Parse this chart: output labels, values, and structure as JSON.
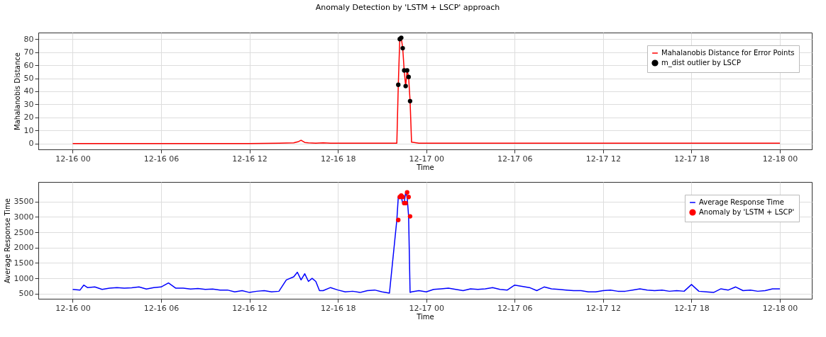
{
  "chart_data": [
    {
      "type": "line",
      "title": "Anomaly Detection by 'LSTM + LSCP' approach",
      "xlabel": "Time",
      "ylabel": "Mahalanobis Distance",
      "xlim": [
        "--12-15T21:40",
        "--12-18T02:10"
      ],
      "ylim": [
        -4.5,
        85
      ],
      "yticks": [
        0,
        10,
        20,
        30,
        40,
        50,
        60,
        70,
        80
      ],
      "xticks": [
        {
          "value": "--12-16T00:00",
          "label": "12-16 00"
        },
        {
          "value": "--12-16T06:00",
          "label": "12-16 06"
        },
        {
          "value": "--12-16T12:00",
          "label": "12-16 12"
        },
        {
          "value": "--12-16T18:00",
          "label": "12-16 18"
        },
        {
          "value": "--12-17T00:00",
          "label": "12-17 00"
        },
        {
          "value": "--12-17T06:00",
          "label": "12-17 06"
        },
        {
          "value": "--12-17T12:00",
          "label": "12-17 12"
        },
        {
          "value": "--12-17T18:00",
          "label": "12-17 18"
        },
        {
          "value": "--12-18T00:00",
          "label": "12-18 00"
        }
      ],
      "grid": true,
      "legend": "top right",
      "series": [
        {
          "name": "Mahalanobis Distance for Error Points",
          "color": "#ff0000",
          "marker": "none",
          "x": [
            "--12-16T00:00",
            "--12-16T04:00",
            "--12-16T08:00",
            "--12-16T12:00",
            "--12-16T14:00",
            "--12-16T15:00",
            "--12-16T15:20",
            "--12-16T15:30",
            "--12-16T15:45",
            "--12-16T16:00",
            "--12-16T16:30",
            "--12-16T17:00",
            "--12-16T17:30",
            "--12-16T18:00",
            "--12-16T20:00",
            "--12-16T22:00",
            "--12-16T22:06",
            "--12-16T22:12",
            "--12-16T22:18",
            "--12-16T22:24",
            "--12-16T22:30",
            "--12-16T22:36",
            "--12-16T22:42",
            "--12-16T22:48",
            "--12-16T22:54",
            "--12-16T23:00",
            "--12-16T23:30",
            "--12-17T02:00",
            "--12-17T06:00",
            "--12-17T08:00",
            "--12-17T12:00",
            "--12-17T18:00",
            "--12-18T00:00"
          ],
          "values": [
            0,
            0,
            0,
            0,
            0.2,
            0.5,
            1.5,
            2.5,
            0.8,
            0.5,
            0.3,
            0.5,
            0.3,
            0.2,
            0.2,
            0.2,
            45,
            80,
            81,
            73,
            56,
            44,
            56,
            51,
            32.5,
            1,
            0.3,
            0.2,
            0.2,
            0.3,
            0.2,
            0.2,
            0.2
          ]
        },
        {
          "name": "m_dist outlier by LSCP",
          "color": "#000000",
          "type": "scatter",
          "marker": "circle",
          "x": [
            "--12-16T22:06",
            "--12-16T22:12",
            "--12-16T22:18",
            "--12-16T22:24",
            "--12-16T22:30",
            "--12-16T22:36",
            "--12-16T22:42",
            "--12-16T22:48",
            "--12-16T22:54"
          ],
          "values": [
            45,
            80,
            81,
            73,
            56,
            44,
            56,
            51,
            32.5
          ]
        }
      ]
    },
    {
      "type": "line",
      "xlabel": "Time",
      "ylabel": "Average Response Time",
      "xlim": [
        "--12-15T21:40",
        "--12-18T02:10"
      ],
      "ylim": [
        335,
        4140
      ],
      "yticks": [
        500,
        1000,
        1500,
        2000,
        2500,
        3000,
        3500
      ],
      "xticks": [
        {
          "value": "--12-16T00:00",
          "label": "12-16 00"
        },
        {
          "value": "--12-16T06:00",
          "label": "12-16 06"
        },
        {
          "value": "--12-16T12:00",
          "label": "12-16 12"
        },
        {
          "value": "--12-16T18:00",
          "label": "12-16 18"
        },
        {
          "value": "--12-17T00:00",
          "label": "12-17 00"
        },
        {
          "value": "--12-17T06:00",
          "label": "12-17 06"
        },
        {
          "value": "--12-17T12:00",
          "label": "12-17 12"
        },
        {
          "value": "--12-17T18:00",
          "label": "12-17 18"
        },
        {
          "value": "--12-18T00:00",
          "label": "12-18 00"
        }
      ],
      "grid": true,
      "legend": "top right",
      "series": [
        {
          "name": "Average Response Time",
          "color": "#0000ff",
          "marker": "none",
          "x": [
            "--12-16T00:00",
            "--12-16T00:30",
            "--12-16T00:45",
            "--12-16T01:00",
            "--12-16T01:30",
            "--12-16T02:00",
            "--12-16T02:30",
            "--12-16T03:00",
            "--12-16T03:30",
            "--12-16T04:00",
            "--12-16T04:30",
            "--12-16T05:00",
            "--12-16T05:30",
            "--12-16T06:00",
            "--12-16T06:30",
            "--12-16T07:00",
            "--12-16T07:30",
            "--12-16T08:00",
            "--12-16T08:30",
            "--12-16T09:00",
            "--12-16T09:30",
            "--12-16T10:00",
            "--12-16T10:30",
            "--12-16T11:00",
            "--12-16T11:30",
            "--12-16T12:00",
            "--12-16T12:30",
            "--12-16T13:00",
            "--12-16T13:30",
            "--12-16T14:00",
            "--12-16T14:30",
            "--12-16T15:00",
            "--12-16T15:15",
            "--12-16T15:30",
            "--12-16T15:45",
            "--12-16T16:00",
            "--12-16T16:15",
            "--12-16T16:30",
            "--12-16T16:45",
            "--12-16T17:00",
            "--12-16T17:30",
            "--12-16T18:00",
            "--12-16T18:30",
            "--12-16T19:00",
            "--12-16T19:30",
            "--12-16T20:00",
            "--12-16T20:30",
            "--12-16T21:00",
            "--12-16T21:30",
            "--12-16T22:00",
            "--12-16T22:06",
            "--12-16T22:12",
            "--12-16T22:18",
            "--12-16T22:24",
            "--12-16T22:30",
            "--12-16T22:36",
            "--12-16T22:42",
            "--12-16T22:48",
            "--12-16T22:54",
            "--12-16T23:00",
            "--12-16T23:30",
            "--12-17T00:00",
            "--12-17T00:30",
            "--12-17T01:00",
            "--12-17T01:30",
            "--12-17T02:00",
            "--12-17T02:30",
            "--12-17T03:00",
            "--12-17T03:30",
            "--12-17T04:00",
            "--12-17T04:30",
            "--12-17T05:00",
            "--12-17T05:30",
            "--12-17T06:00",
            "--12-17T06:30",
            "--12-17T07:00",
            "--12-17T07:30",
            "--12-17T08:00",
            "--12-17T08:30",
            "--12-17T09:00",
            "--12-17T09:30",
            "--12-17T10:00",
            "--12-17T10:30",
            "--12-17T11:00",
            "--12-17T11:30",
            "--12-17T12:00",
            "--12-17T12:30",
            "--12-17T13:00",
            "--12-17T13:30",
            "--12-17T14:00",
            "--12-17T14:30",
            "--12-17T15:00",
            "--12-17T15:30",
            "--12-17T16:00",
            "--12-17T16:30",
            "--12-17T17:00",
            "--12-17T17:30",
            "--12-17T18:00",
            "--12-17T18:30",
            "--12-17T19:00",
            "--12-17T19:30",
            "--12-17T20:00",
            "--12-17T20:30",
            "--12-17T21:00",
            "--12-17T21:30",
            "--12-17T22:00",
            "--12-17T22:30",
            "--12-17T23:00",
            "--12-17T23:30",
            "--12-18T00:00"
          ],
          "values": [
            640,
            620,
            780,
            700,
            720,
            640,
            680,
            700,
            680,
            690,
            720,
            650,
            700,
            720,
            850,
            680,
            680,
            650,
            670,
            640,
            650,
            620,
            620,
            560,
            600,
            540,
            580,
            600,
            560,
            580,
            950,
            1050,
            1200,
            950,
            1150,
            900,
            1000,
            900,
            600,
            600,
            700,
            620,
            560,
            580,
            540,
            600,
            620,
            560,
            520,
            2900,
            3650,
            3700,
            3650,
            3450,
            3450,
            3800,
            3650,
            3020,
            540,
            560,
            600,
            560,
            640,
            660,
            680,
            640,
            600,
            660,
            640,
            660,
            700,
            640,
            620,
            780,
            740,
            700,
            600,
            720,
            660,
            640,
            620,
            600,
            600,
            560,
            560,
            600,
            620,
            580,
            580,
            620,
            660,
            620,
            600,
            620,
            580,
            600,
            580,
            800,
            580,
            560,
            540,
            660,
            620,
            720,
            600,
            620,
            580,
            600,
            660,
            660
          ]
        },
        {
          "name": "Anomaly by 'LSTM + LSCP'",
          "color": "#ff0000",
          "type": "scatter",
          "marker": "circle",
          "x": [
            "--12-16T22:06",
            "--12-16T22:12",
            "--12-16T22:18",
            "--12-16T22:24",
            "--12-16T22:30",
            "--12-16T22:36",
            "--12-16T22:42",
            "--12-16T22:48",
            "--12-16T22:54"
          ],
          "values": [
            2900,
            3650,
            3700,
            3650,
            3450,
            3450,
            3800,
            3650,
            3020
          ]
        }
      ]
    }
  ]
}
